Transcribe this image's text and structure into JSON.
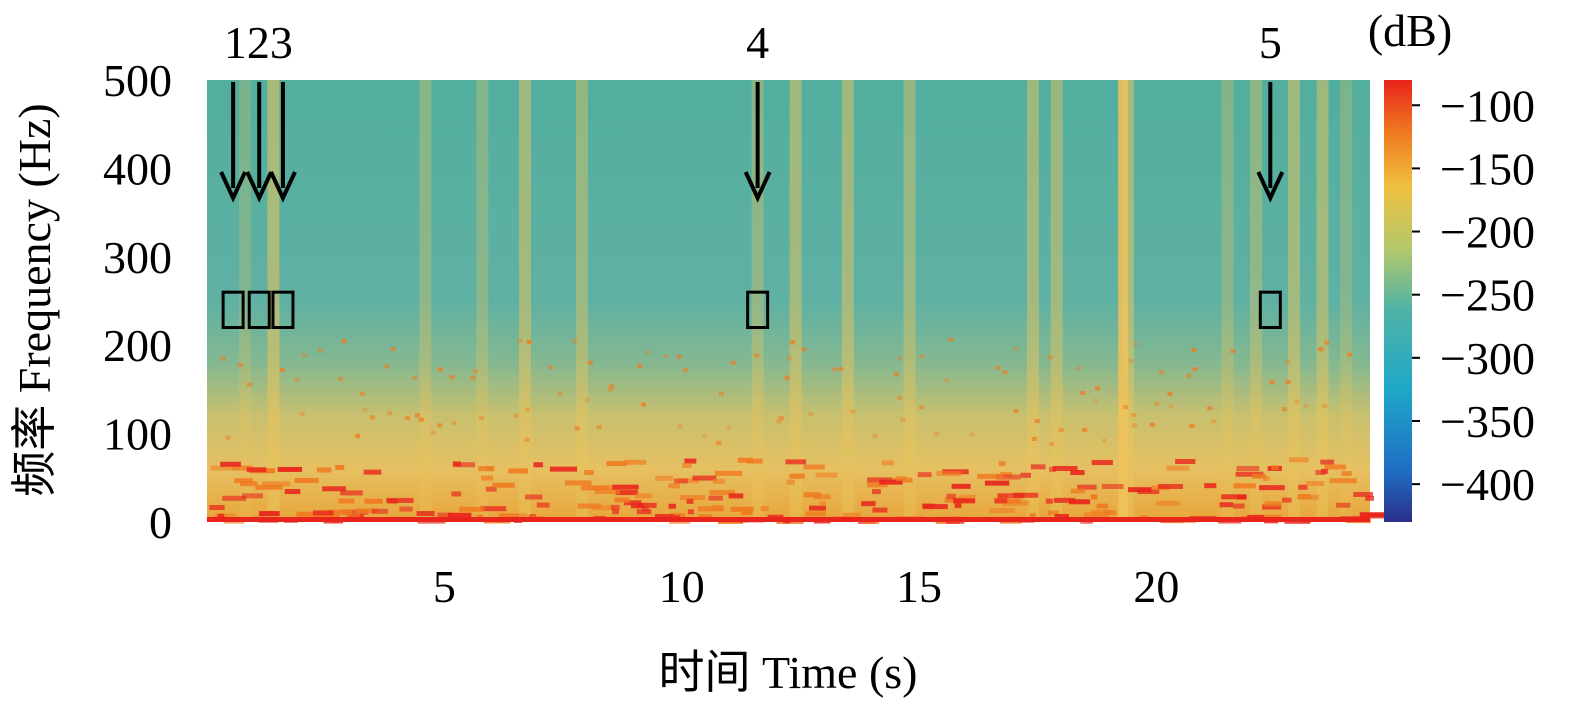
{
  "chart_data": {
    "type": "heatmap",
    "xlabel": "时间 Time (s)",
    "ylabel": "频率 Frequency (Hz)",
    "xlim": [
      0,
      24.5
    ],
    "ylim": [
      0,
      500
    ],
    "xticks": [
      5,
      10,
      15,
      20
    ],
    "yticks": [
      0,
      100,
      200,
      300,
      400,
      500
    ],
    "colorbar": {
      "unit": "(dB)",
      "range": [
        -430,
        -80
      ],
      "ticks": [
        -100,
        -150,
        -200,
        -250,
        -300,
        -350,
        -400
      ]
    },
    "annotations": [
      {
        "label": "1",
        "time": 0.55,
        "freq_range": [
          220,
          260
        ]
      },
      {
        "label": "2",
        "time": 1.1,
        "freq_range": [
          220,
          260
        ]
      },
      {
        "label": "3",
        "time": 1.6,
        "freq_range": [
          220,
          260
        ]
      },
      {
        "label": "4",
        "time": 11.6,
        "freq_range": [
          220,
          260
        ]
      },
      {
        "label": "5",
        "time": 22.4,
        "freq_range": [
          220,
          260
        ]
      }
    ],
    "top_labels": [
      "123",
      "4",
      "5"
    ],
    "colors": {
      "background": "#4fb3a6",
      "mid": "#e8c85a",
      "high": "#e8241c",
      "low": "#2b2f8a"
    }
  }
}
